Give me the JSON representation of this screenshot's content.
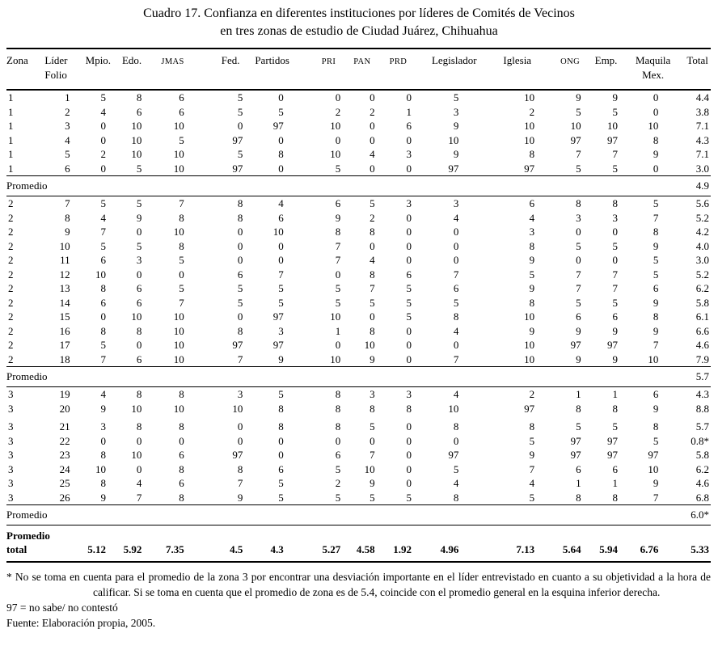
{
  "title": {
    "line1": "Cuadro 17. Confianza en diferentes instituciones por líderes de Comités de Vecinos",
    "line2": "en tres zonas de estudio de Ciudad Juárez, Chihuahua"
  },
  "table": {
    "columns": [
      {
        "line1": "Zona",
        "line2": "",
        "smallcaps": false
      },
      {
        "line1": "Líder",
        "line2": "Folio",
        "smallcaps": false
      },
      {
        "line1": "Mpio.",
        "line2": "",
        "smallcaps": false
      },
      {
        "line1": "Edo.",
        "line2": "",
        "smallcaps": false
      },
      {
        "line1": "JMAS",
        "line2": "",
        "smallcaps": true
      },
      {
        "line1": "Fed.",
        "line2": "",
        "smallcaps": false
      },
      {
        "line1": "Partidos",
        "line2": "",
        "smallcaps": false
      },
      {
        "line1": "PRI",
        "line2": "",
        "smallcaps": true
      },
      {
        "line1": "PAN",
        "line2": "",
        "smallcaps": true
      },
      {
        "line1": "PRD",
        "line2": "",
        "smallcaps": true
      },
      {
        "line1": "Legislador",
        "line2": "",
        "smallcaps": false
      },
      {
        "line1": "Iglesia",
        "line2": "",
        "smallcaps": false
      },
      {
        "line1": "ONG",
        "line2": "",
        "smallcaps": true
      },
      {
        "line1": "Emp.",
        "line2": "",
        "smallcaps": false
      },
      {
        "line1": "Maquila",
        "line2": "Mex.",
        "smallcaps": false
      },
      {
        "line1": "Total",
        "line2": "",
        "smallcaps": false
      }
    ],
    "zones": [
      {
        "rows": [
          [
            "1",
            "1",
            "5",
            "8",
            "6",
            "5",
            "0",
            "0",
            "0",
            "0",
            "5",
            "10",
            "9",
            "9",
            "0",
            "4.4"
          ],
          [
            "1",
            "2",
            "4",
            "6",
            "6",
            "5",
            "5",
            "2",
            "2",
            "1",
            "3",
            "2",
            "5",
            "5",
            "0",
            "3.8"
          ],
          [
            "1",
            "3",
            "0",
            "10",
            "10",
            "0",
            "97",
            "10",
            "0",
            "6",
            "9",
            "10",
            "10",
            "10",
            "10",
            "7.1"
          ],
          [
            "1",
            "4",
            "0",
            "10",
            "5",
            "97",
            "0",
            "0",
            "0",
            "0",
            "10",
            "10",
            "97",
            "97",
            "8",
            "4.3"
          ],
          [
            "1",
            "5",
            "2",
            "10",
            "10",
            "5",
            "8",
            "10",
            "4",
            "3",
            "9",
            "8",
            "7",
            "7",
            "9",
            "7.1"
          ],
          [
            "1",
            "6",
            "0",
            "5",
            "10",
            "97",
            "0",
            "5",
            "0",
            "0",
            "97",
            "97",
            "5",
            "5",
            "0",
            "3.0"
          ]
        ],
        "promedio": {
          "label": "Promedio",
          "value": "4.9"
        }
      },
      {
        "rows": [
          [
            "2",
            "7",
            "5",
            "5",
            "7",
            "8",
            "4",
            "6",
            "5",
            "3",
            "3",
            "6",
            "8",
            "8",
            "5",
            "5.6"
          ],
          [
            "2",
            "8",
            "4",
            "9",
            "8",
            "8",
            "6",
            "9",
            "2",
            "0",
            "4",
            "4",
            "3",
            "3",
            "7",
            "5.2"
          ],
          [
            "2",
            "9",
            "7",
            "0",
            "10",
            "0",
            "10",
            "8",
            "8",
            "0",
            "0",
            "3",
            "0",
            "0",
            "8",
            "4.2"
          ],
          [
            "2",
            "10",
            "5",
            "5",
            "8",
            "0",
            "0",
            "7",
            "0",
            "0",
            "0",
            "8",
            "5",
            "5",
            "9",
            "4.0"
          ],
          [
            "2",
            "11",
            "6",
            "3",
            "5",
            "0",
            "0",
            "7",
            "4",
            "0",
            "0",
            "9",
            "0",
            "0",
            "5",
            "3.0"
          ],
          [
            "2",
            "12",
            "10",
            "0",
            "0",
            "6",
            "7",
            "0",
            "8",
            "6",
            "7",
            "5",
            "7",
            "7",
            "5",
            "5.2"
          ],
          [
            "2",
            "13",
            "8",
            "6",
            "5",
            "5",
            "5",
            "5",
            "7",
            "5",
            "6",
            "9",
            "7",
            "7",
            "6",
            "6.2"
          ],
          [
            "2",
            "14",
            "6",
            "6",
            "7",
            "5",
            "5",
            "5",
            "5",
            "5",
            "5",
            "8",
            "5",
            "5",
            "9",
            "5.8"
          ],
          [
            "2",
            "15",
            "0",
            "10",
            "10",
            "0",
            "97",
            "10",
            "0",
            "5",
            "8",
            "10",
            "6",
            "6",
            "8",
            "6.1"
          ],
          [
            "2",
            "16",
            "8",
            "8",
            "10",
            "8",
            "3",
            "1",
            "8",
            "0",
            "4",
            "9",
            "9",
            "9",
            "9",
            "6.6"
          ],
          [
            "2",
            "17",
            "5",
            "0",
            "10",
            "97",
            "97",
            "0",
            "10",
            "0",
            "0",
            "10",
            "97",
            "97",
            "7",
            "4.6"
          ],
          [
            "2",
            "18",
            "7",
            "6",
            "10",
            "7",
            "9",
            "10",
            "9",
            "0",
            "7",
            "10",
            "9",
            "9",
            "10",
            "7.9"
          ]
        ],
        "promedio": {
          "label": "Promedio",
          "value": "5.7"
        }
      },
      {
        "rows": [
          [
            "3",
            "19",
            "4",
            "8",
            "8",
            "3",
            "5",
            "8",
            "3",
            "3",
            "4",
            "2",
            "1",
            "1",
            "6",
            "4.3"
          ],
          [
            "3",
            "20",
            "9",
            "10",
            "10",
            "10",
            "8",
            "8",
            "8",
            "8",
            "10",
            "97",
            "8",
            "8",
            "9",
            "8.8"
          ],
          [
            "3",
            "21",
            "3",
            "8",
            "8",
            "0",
            "8",
            "8",
            "5",
            "0",
            "8",
            "8",
            "5",
            "5",
            "8",
            "5.7"
          ],
          [
            "3",
            "22",
            "0",
            "0",
            "0",
            "0",
            "0",
            "0",
            "0",
            "0",
            "0",
            "5",
            "97",
            "97",
            "5",
            "0.8*"
          ],
          [
            "3",
            "23",
            "8",
            "10",
            "6",
            "97",
            "0",
            "6",
            "7",
            "0",
            "97",
            "9",
            "97",
            "97",
            "97",
            "5.8"
          ],
          [
            "3",
            "24",
            "10",
            "0",
            "8",
            "8",
            "6",
            "5",
            "10",
            "0",
            "5",
            "7",
            "6",
            "6",
            "10",
            "6.2"
          ],
          [
            "3",
            "25",
            "8",
            "4",
            "6",
            "7",
            "5",
            "2",
            "9",
            "0",
            "4",
            "4",
            "1",
            "1",
            "9",
            "4.6"
          ],
          [
            "3",
            "26",
            "9",
            "7",
            "8",
            "9",
            "5",
            "5",
            "5",
            "5",
            "8",
            "5",
            "8",
            "8",
            "7",
            "6.8"
          ]
        ],
        "promedio": {
          "label": "Promedio",
          "value": "6.0*"
        }
      }
    ],
    "total_row": {
      "label_line1": "Promedio",
      "label_line2": "total",
      "values": [
        "5.12",
        "5.92",
        "7.35",
        "4.5",
        "4.3",
        "5.27",
        "4.58",
        "1.92",
        "4.96",
        "7.13",
        "5.64",
        "5.94",
        "6.76",
        "5.33"
      ]
    }
  },
  "footnotes": {
    "asterisk": "* No se toma en cuenta para el promedio de la zona 3 por encontrar una desviación importante en el líder entrevistado en cuanto a su objetividad a la hora de calificar. Si se toma en cuenta que el promedio de zona es de 5.4, coincide con el promedio general en la esquina inferior derecha.",
    "code97": "97 = no sabe/ no contestó",
    "fuente": "Fuente: Elaboración propia, 2005."
  }
}
